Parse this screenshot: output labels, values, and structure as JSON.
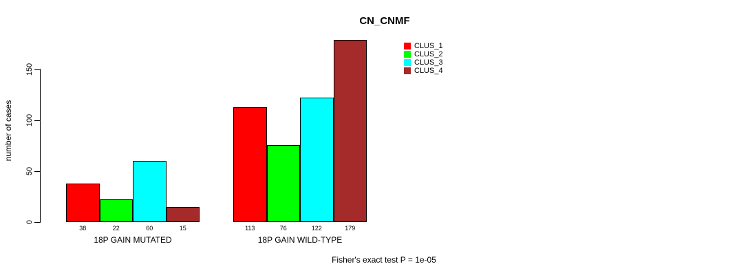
{
  "title": "CN_CNMF",
  "y_axis": {
    "label": "number of cases",
    "ticks": [
      0,
      50,
      100,
      150
    ]
  },
  "legend": {
    "items": [
      {
        "label": "CLUS_1",
        "color": "#FF0000"
      },
      {
        "label": "CLUS_2",
        "color": "#00FF00"
      },
      {
        "label": "CLUS_3",
        "color": "#00FFFF"
      },
      {
        "label": "CLUS_4",
        "color": "#A52A2A"
      }
    ]
  },
  "footnote": "Fisher's exact test P = 1e-05",
  "chart_data": {
    "type": "bar",
    "title": "CN_CNMF",
    "xlabel": "",
    "ylabel": "number of cases",
    "ylim": [
      0,
      185
    ],
    "y_ticks": [
      0,
      50,
      100,
      150
    ],
    "grid": false,
    "legend_position": "top-right",
    "categories": [
      "18P GAIN MUTATED",
      "18P GAIN WILD-TYPE"
    ],
    "series": [
      {
        "name": "CLUS_1",
        "color": "#FF0000",
        "values": [
          38,
          113
        ]
      },
      {
        "name": "CLUS_2",
        "color": "#00FF00",
        "values": [
          22,
          76
        ]
      },
      {
        "name": "CLUS_3",
        "color": "#00FFFF",
        "values": [
          60,
          122
        ]
      },
      {
        "name": "CLUS_4",
        "color": "#A52A2A",
        "values": [
          15,
          179
        ]
      }
    ],
    "bar_value_labels": {
      "18P GAIN MUTATED": [
        38,
        22,
        60,
        15
      ],
      "18P GAIN WILD-TYPE": [
        113,
        76,
        122,
        179
      ]
    },
    "annotation": "Fisher's exact test P = 1e-05"
  }
}
